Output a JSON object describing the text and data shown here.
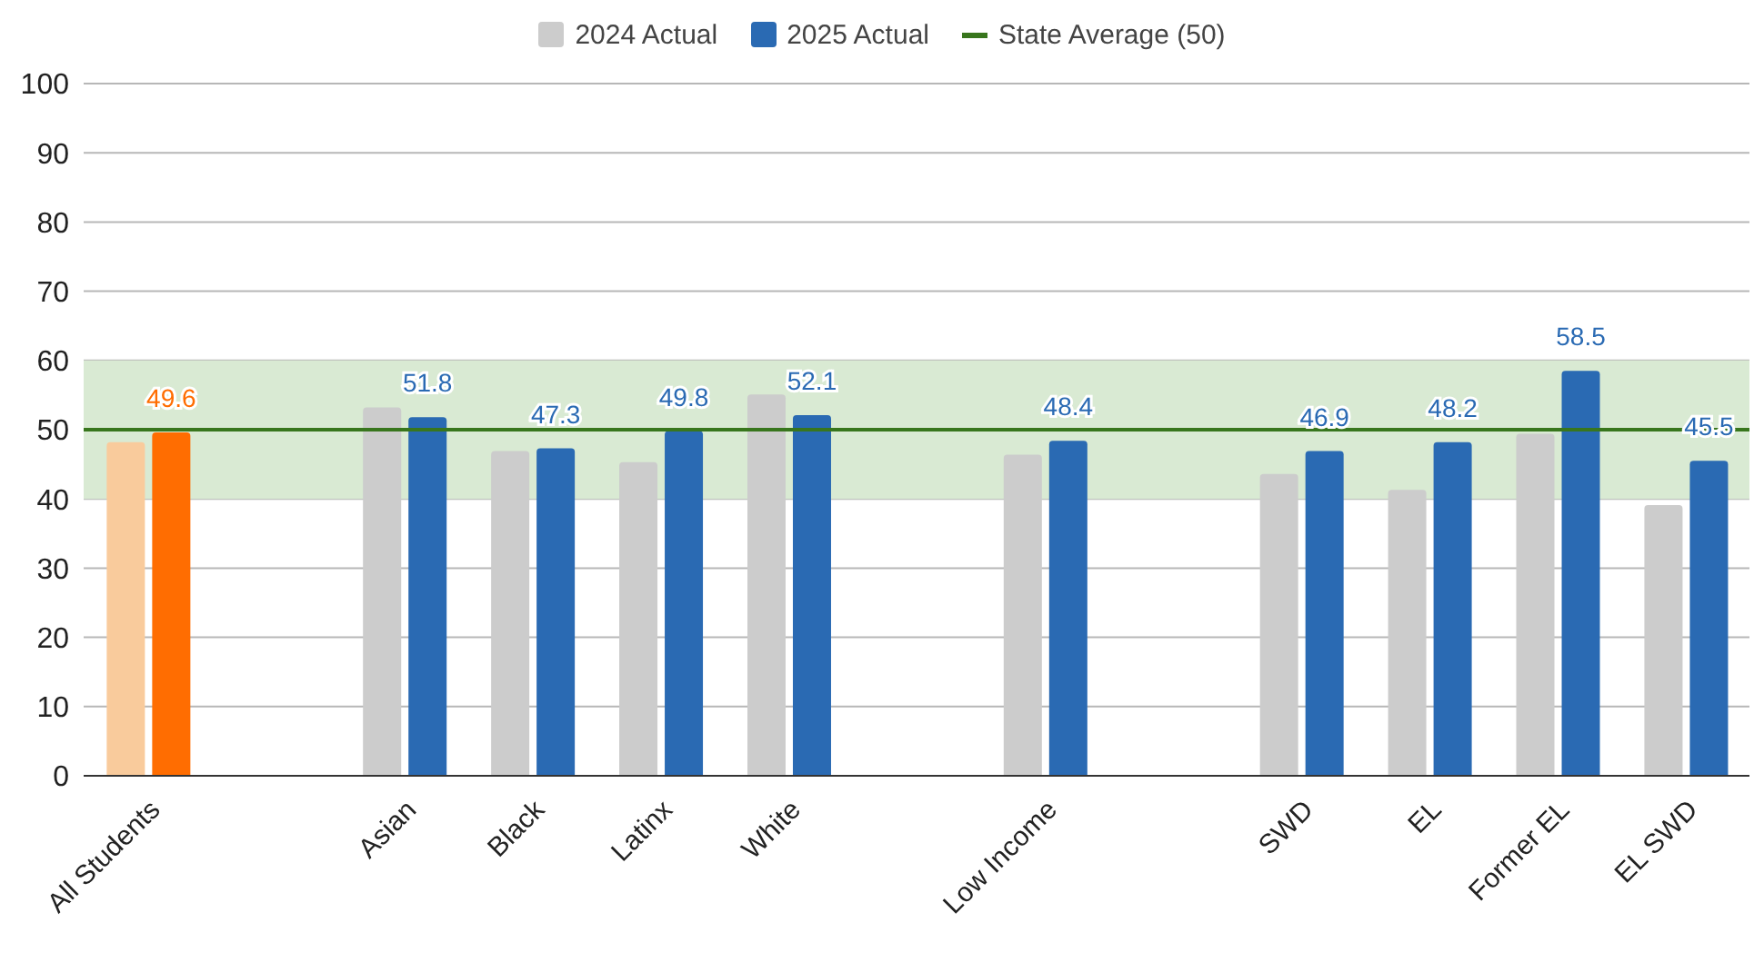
{
  "chart_data": {
    "type": "bar",
    "categories": [
      "All Students",
      null,
      "Asian",
      "Black",
      "Latinx",
      "White",
      null,
      "Low Income",
      null,
      "SWD",
      "EL",
      "Former EL",
      "EL SWD"
    ],
    "series": [
      {
        "name": "2024 Actual",
        "color": "#cccccc",
        "colors": [
          "#f9cb9c",
          "#cccccc",
          "#cccccc",
          "#cccccc",
          "#cccccc",
          "#cccccc",
          "#cccccc",
          "#cccccc",
          "#cccccc",
          "#cccccc",
          "#cccccc",
          "#cccccc",
          "#cccccc"
        ],
        "values": [
          48.2,
          null,
          53.2,
          46.9,
          45.3,
          55.1,
          null,
          46.4,
          null,
          43.6,
          41.3,
          49.4,
          39.1
        ]
      },
      {
        "name": "2025 Actual",
        "color": "#2a6ab3",
        "colors": [
          "#ff6d01",
          "#2a6ab3",
          "#2a6ab3",
          "#2a6ab3",
          "#2a6ab3",
          "#2a6ab3",
          "#2a6ab3",
          "#2a6ab3",
          "#2a6ab3",
          "#2a6ab3",
          "#2a6ab3",
          "#2a6ab3",
          "#2a6ab3"
        ],
        "values": [
          49.6,
          null,
          51.8,
          47.3,
          49.8,
          52.1,
          null,
          48.4,
          null,
          46.9,
          48.2,
          58.5,
          45.5
        ],
        "value_labels": [
          "49.6",
          null,
          "51.8",
          "47.3",
          "49.8",
          "52.1",
          null,
          "48.4",
          null,
          "46.9",
          "48.2",
          "58.5",
          "45.5"
        ]
      }
    ],
    "ylim": [
      0,
      100
    ],
    "yticks": [
      0,
      10,
      20,
      30,
      40,
      50,
      60,
      70,
      80,
      90,
      100
    ],
    "grid": "y",
    "legend": "top",
    "ref_lines": [
      {
        "axis": "y",
        "value": 50,
        "label": "State Average (50)",
        "color": "#38761d"
      }
    ],
    "bands": [
      {
        "axis": "y",
        "from": 40,
        "to": 60,
        "color": "#d9ead3"
      }
    ]
  }
}
